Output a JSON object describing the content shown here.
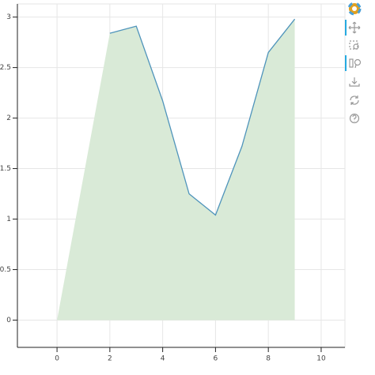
{
  "chart_data": {
    "type": "area_line",
    "xlim": [
      -1.5,
      10.9
    ],
    "ylim": [
      -0.27,
      3.13
    ],
    "xticks": [
      0,
      2,
      4,
      6,
      8,
      10
    ],
    "yticks": [
      0,
      0.5,
      1,
      1.5,
      2,
      2.5,
      3
    ],
    "grid": true,
    "series": [
      {
        "type": "area",
        "color": "#d9ead7",
        "x": [
          0,
          2,
          3,
          4,
          5,
          6,
          7,
          8,
          9
        ],
        "values": [
          0,
          2.84,
          2.91,
          2.17,
          1.25,
          1.04,
          1.72,
          2.65,
          2.98
        ]
      },
      {
        "type": "line",
        "color": "#4f94bb",
        "x": [
          2,
          3,
          4,
          5,
          6,
          7,
          8,
          9
        ],
        "values": [
          2.84,
          2.91,
          2.17,
          1.25,
          1.04,
          1.72,
          2.65,
          2.98
        ]
      }
    ]
  }
}
